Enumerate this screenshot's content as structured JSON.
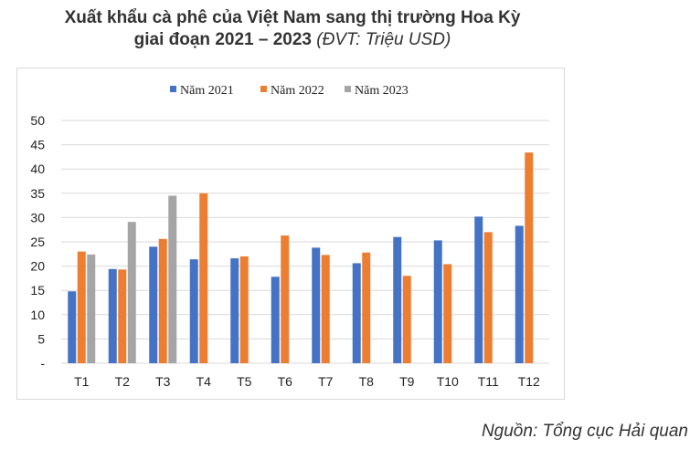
{
  "title": {
    "line1": "Xuất khẩu cà phê của Việt Nam sang thị trường Hoa Kỳ",
    "line2": "giai đoạn 2021 – 2023",
    "unit": "(ĐVT: Triệu USD)"
  },
  "source": "Nguồn: Tổng cục Hải quan",
  "chart_data": {
    "type": "bar",
    "categories": [
      "T1",
      "T2",
      "T3",
      "T4",
      "T5",
      "T6",
      "T7",
      "T8",
      "T9",
      "T10",
      "T11",
      "T12"
    ],
    "series": [
      {
        "name": "Năm 2021",
        "color": "#4472c4",
        "values": [
          14.8,
          19.4,
          24.0,
          21.4,
          21.6,
          17.8,
          23.8,
          20.6,
          26.0,
          25.3,
          30.2,
          28.3
        ]
      },
      {
        "name": "Năm 2022",
        "color": "#ed7d31",
        "values": [
          23.0,
          19.3,
          25.6,
          35.0,
          22.0,
          26.3,
          22.3,
          22.8,
          18.0,
          20.4,
          27.0,
          43.4
        ]
      },
      {
        "name": "Năm 2023",
        "color": "#a5a5a5",
        "values": [
          22.4,
          29.1,
          34.5,
          null,
          null,
          null,
          null,
          null,
          null,
          null,
          null,
          null
        ]
      }
    ],
    "ylim": [
      0,
      50
    ],
    "yticks": [
      0,
      5,
      10,
      15,
      20,
      25,
      30,
      35,
      40,
      45,
      50
    ],
    "ytick_labels": [
      "-",
      "5",
      "10",
      "15",
      "20",
      "25",
      "30",
      "35",
      "40",
      "45",
      "50"
    ],
    "grid": true,
    "legend_position": "top"
  }
}
